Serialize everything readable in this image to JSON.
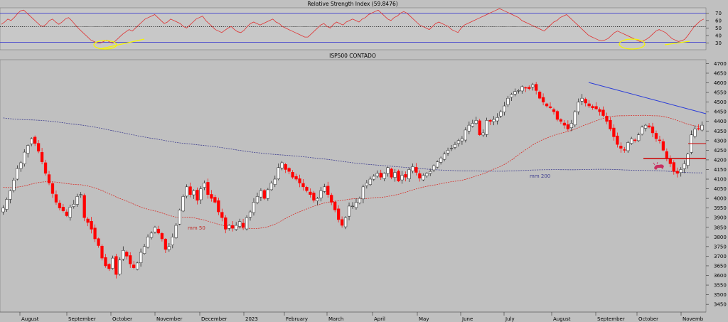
{
  "chart_data": [
    {
      "type": "line",
      "title": "Relative Strength Index (59.8476)",
      "ylim": [
        21,
        77
      ],
      "y_ticks": [
        30,
        40,
        50,
        60,
        70
      ],
      "reference_lines": [
        {
          "value": 70,
          "style": "solid",
          "color": "#2a2acf"
        },
        {
          "value": 52,
          "style": "dotted",
          "color": "#000000"
        },
        {
          "value": 31,
          "style": "solid",
          "color": "#2a2acf"
        }
      ],
      "series": [
        {
          "color": "#e03030",
          "values": [
            55,
            58,
            62,
            60,
            64,
            69,
            73,
            74,
            70,
            66,
            62,
            58,
            54,
            52,
            55,
            60,
            62,
            58,
            55,
            58,
            62,
            64,
            60,
            55,
            50,
            46,
            42,
            38,
            34,
            32,
            30,
            30,
            32,
            34,
            31,
            30,
            34,
            38,
            42,
            45,
            48,
            46,
            50,
            54,
            58,
            62,
            64,
            66,
            68,
            64,
            60,
            56,
            58,
            62,
            60,
            58,
            56,
            52,
            50,
            54,
            58,
            62,
            64,
            66,
            60,
            56,
            52,
            48,
            46,
            44,
            47,
            50,
            52,
            48,
            45,
            44,
            47,
            52,
            56,
            58,
            56,
            54,
            56,
            58,
            60,
            62,
            58,
            56,
            52,
            50,
            48,
            46,
            44,
            42,
            40,
            38,
            38,
            42,
            46,
            50,
            54,
            56,
            52,
            50,
            55,
            58,
            56,
            54,
            58,
            60,
            62,
            60,
            58,
            62,
            64,
            68,
            70,
            72,
            74,
            70,
            66,
            62,
            60,
            64,
            66,
            70,
            72,
            70,
            66,
            62,
            58,
            54,
            52,
            50,
            48,
            52,
            56,
            58,
            56,
            54,
            52,
            48,
            46,
            44,
            50,
            54,
            56,
            58,
            60,
            62,
            64,
            66,
            68,
            70,
            72,
            74,
            76,
            74,
            72,
            70,
            68,
            66,
            64,
            60,
            58,
            56,
            54,
            52,
            50,
            48,
            46,
            50,
            54,
            58,
            60,
            64,
            66,
            68,
            64,
            60,
            56,
            52,
            48,
            44,
            40,
            38,
            36,
            34,
            33,
            34,
            36,
            40,
            44,
            46,
            44,
            42,
            40,
            38,
            36,
            34,
            32,
            33,
            35,
            38,
            42,
            46,
            48,
            46,
            44,
            40,
            36,
            34,
            32,
            33,
            35,
            40,
            46,
            52,
            56,
            60,
            62
          ]
        }
      ]
    },
    {
      "type": "candlestick",
      "title": "ISP500 CONTADO",
      "ylim": [
        3410,
        4720
      ],
      "y_ticks": [
        3450,
        3500,
        3550,
        3600,
        3650,
        3700,
        3750,
        3800,
        3850,
        3900,
        3950,
        4000,
        4050,
        4100,
        4150,
        4200,
        4250,
        4300,
        4350,
        4400,
        4450,
        4500,
        4550,
        4600,
        4650,
        4700
      ],
      "x_labels": [
        "August",
        "September",
        "October",
        "November",
        "December",
        "2023",
        "February",
        "March",
        "April",
        "May",
        "June",
        "July",
        "August",
        "September",
        "October",
        "Novemb"
      ],
      "ma_labels": [
        "mm 50",
        "mm 200"
      ],
      "colors": {
        "up": "#1c1c1c",
        "down": "#ff0000",
        "ma50": "#d8302a",
        "ma200": "#404090",
        "trend": "#2a3cd8",
        "support": "#cc0000"
      },
      "closes": [
        3950,
        3995,
        4040,
        4095,
        4155,
        4185,
        4240,
        4275,
        4310,
        4285,
        4245,
        4190,
        4130,
        4080,
        4025,
        3980,
        3950,
        3935,
        3910,
        3955,
        3970,
        4010,
        4020,
        3900,
        3875,
        3840,
        3790,
        3755,
        3690,
        3650,
        3635,
        3690,
        3605,
        3680,
        3730,
        3700,
        3660,
        3640,
        3665,
        3720,
        3750,
        3800,
        3820,
        3850,
        3820,
        3790,
        3735,
        3750,
        3800,
        3860,
        3940,
        4010,
        4060,
        4020,
        4040,
        3990,
        4050,
        4080,
        4020,
        4000,
        3980,
        3930,
        3900,
        3840,
        3860,
        3845,
        3860,
        3880,
        3850,
        3900,
        3930,
        3980,
        4010,
        4040,
        4000,
        4045,
        4080,
        4100,
        4160,
        4185,
        4150,
        4140,
        4110,
        4100,
        4080,
        4060,
        4040,
        4020,
        3990,
        4000,
        4040,
        4060,
        4020,
        3980,
        3940,
        3890,
        3860,
        3900,
        3960,
        3960,
        3980,
        4000,
        4060,
        4080,
        4100,
        4115,
        4130,
        4110,
        4130,
        4160,
        4110,
        4135,
        4090,
        4120,
        4110,
        4150,
        4165,
        4135,
        4105,
        4120,
        4130,
        4140,
        4170,
        4190,
        4210,
        4230,
        4250,
        4260,
        4280,
        4300,
        4310,
        4355,
        4380,
        4390,
        4405,
        4330,
        4340,
        4405,
        4400,
        4410,
        4420,
        4450,
        4480,
        4520,
        4540,
        4555,
        4560,
        4580,
        4575,
        4570,
        4590,
        4560,
        4520,
        4500,
        4480,
        4470,
        4450,
        4410,
        4400,
        4380,
        4360,
        4390,
        4450,
        4500,
        4520,
        4495,
        4480,
        4470,
        4465,
        4450,
        4430,
        4400,
        4360,
        4320,
        4280,
        4260,
        4250,
        4290,
        4310,
        4300,
        4330,
        4370,
        4380,
        4370,
        4340,
        4310,
        4300,
        4250,
        4210,
        4180,
        4140,
        4130,
        4150,
        4180,
        4230,
        4330,
        4360,
        4360,
        4380
      ]
    }
  ]
}
